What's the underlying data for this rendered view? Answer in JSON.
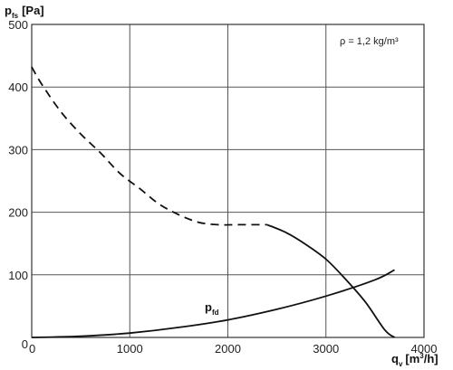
{
  "chart_data": {
    "type": "line",
    "y_axis_label": {
      "main": "p",
      "sub": "fs",
      "unit": "[Pa]"
    },
    "x_axis_label": {
      "main": "q",
      "sub": "v",
      "unit_pre": "[m",
      "unit_sup": "3",
      "unit_post": "/h]"
    },
    "annotation": "ρ = 1,2 kg/m³",
    "xlim": [
      0,
      4000
    ],
    "ylim": [
      0,
      500
    ],
    "x_ticks": [
      0,
      1000,
      2000,
      3000,
      4000
    ],
    "y_ticks": [
      0,
      100,
      200,
      300,
      400,
      500
    ],
    "x_tick_labels": [
      "0",
      "1000",
      "2000",
      "3000",
      "4000"
    ],
    "y_tick_labels": [
      "0",
      "100",
      "200",
      "300",
      "400",
      "500"
    ],
    "grid": true,
    "series": [
      {
        "style": "dashed",
        "x": [
          0,
          100,
          300,
          500,
          700,
          900,
          1100,
          1300,
          1500,
          1700,
          1900,
          2100,
          2400
        ],
        "y": [
          432,
          405,
          360,
          325,
          295,
          262,
          238,
          213,
          196,
          184,
          180,
          180,
          180
        ]
      },
      {
        "style": "solid",
        "x": [
          2400,
          2600,
          2800,
          3000,
          3200,
          3400,
          3600,
          3700
        ],
        "y": [
          180,
          167,
          148,
          125,
          93,
          57,
          12,
          0
        ]
      },
      {
        "name_main": "p",
        "name_sub": "fd",
        "style": "solid",
        "x": [
          0,
          500,
          1000,
          1500,
          2000,
          2500,
          3000,
          3500,
          3700
        ],
        "y": [
          0,
          2,
          7,
          16,
          28,
          45,
          66,
          92,
          108
        ]
      }
    ]
  }
}
